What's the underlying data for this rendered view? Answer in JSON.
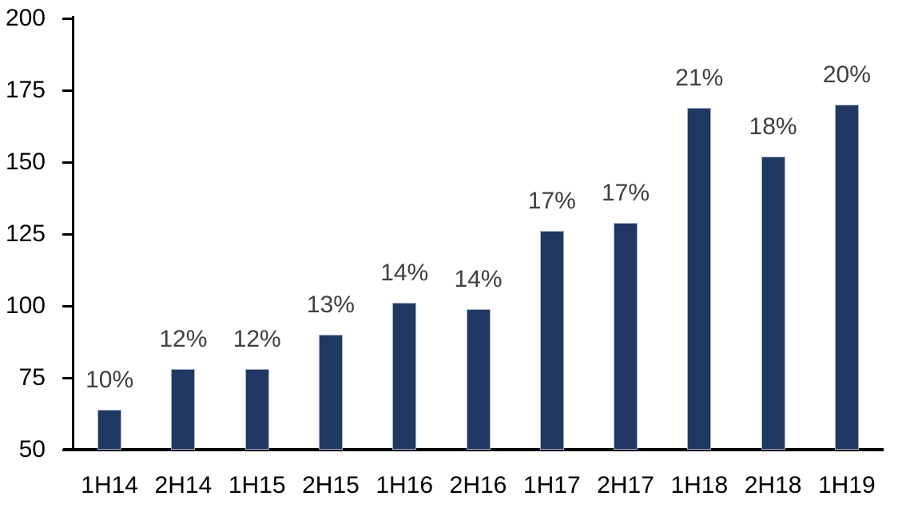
{
  "chart_data": {
    "type": "bar",
    "title": "",
    "xlabel": "",
    "ylabel": "",
    "categories": [
      "1H14",
      "2H14",
      "1H15",
      "2H15",
      "1H16",
      "2H16",
      "1H17",
      "2H17",
      "1H18",
      "2H18",
      "1H19"
    ],
    "values": [
      64,
      78,
      78,
      90,
      101,
      99,
      126,
      129,
      169,
      152,
      170
    ],
    "bar_labels": [
      "10%",
      "12%",
      "12%",
      "13%",
      "14%",
      "14%",
      "17%",
      "17%",
      "21%",
      "18%",
      "20%"
    ],
    "ylim": [
      50,
      200
    ],
    "yticks": [
      50,
      75,
      100,
      125,
      150,
      175,
      200
    ],
    "grid": false,
    "legend": "none",
    "colors": {
      "bar_fill": "#1F3864",
      "bar_border": "#A9B6CE",
      "data_label": "#3F3F3F",
      "axis_line": "#000000",
      "tick_label": "#000000",
      "background": "#FFFFFF"
    }
  }
}
